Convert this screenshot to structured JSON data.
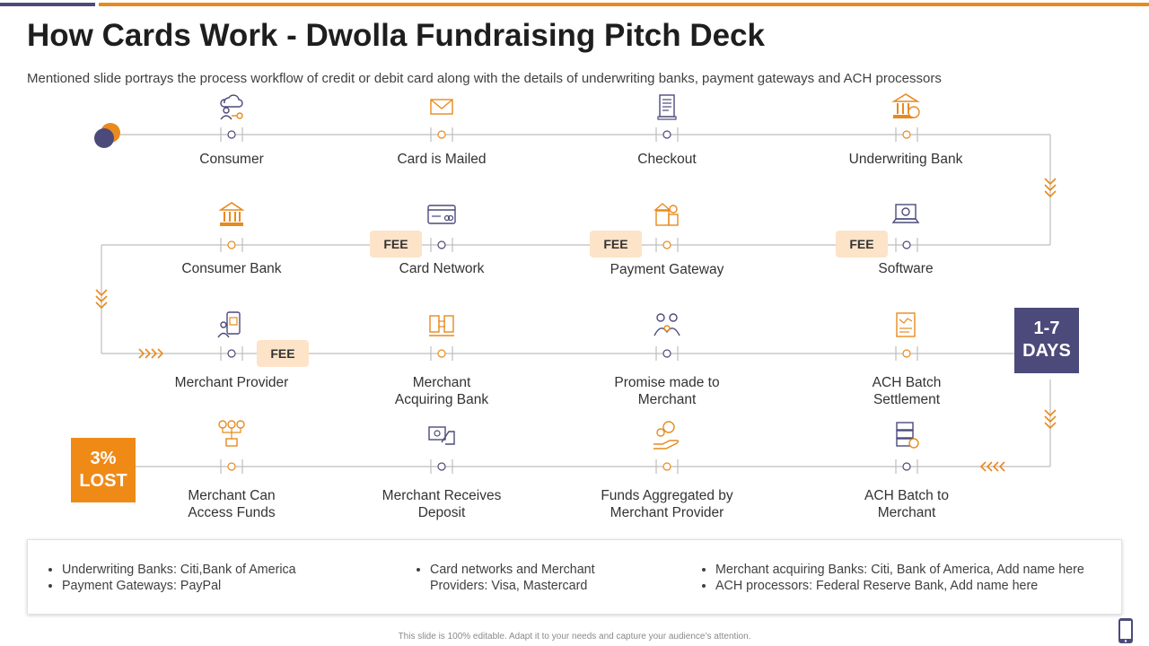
{
  "header": {
    "title": "How Cards Work - Dwolla Fundraising Pitch Deck",
    "subtitle": "Mentioned slide portrays the process workflow of credit or debit card along with the details of underwriting banks, payment gateways and ACH processors"
  },
  "steps": [
    {
      "label": "Consumer",
      "icon": "consumer-cloud-icon"
    },
    {
      "label": "Card is Mailed",
      "icon": "envelope-icon"
    },
    {
      "label": "Checkout",
      "icon": "receipt-icon"
    },
    {
      "label": "Underwriting Bank",
      "icon": "bank-icon"
    },
    {
      "label": "Consumer Bank",
      "icon": "bank-icon"
    },
    {
      "label": "Card Network",
      "icon": "credit-card-icon"
    },
    {
      "label": "Payment Gateway",
      "icon": "payment-gateway-icon"
    },
    {
      "label": "Software",
      "icon": "laptop-gear-icon"
    },
    {
      "label": "Merchant Provider",
      "icon": "mobile-payment-icon"
    },
    {
      "label": "Merchant Acquiring Bank",
      "icon": "money-transfer-icon"
    },
    {
      "label": "Promise made to Merchant",
      "icon": "handshake-people-icon"
    },
    {
      "label": "ACH Batch Settlement",
      "icon": "settlement-document-icon"
    },
    {
      "label": "Merchant Can Access Funds",
      "icon": "funds-tree-icon"
    },
    {
      "label": "Merchant Receives Deposit",
      "icon": "hand-cash-icon"
    },
    {
      "label": "Funds Aggregated by Merchant Provider",
      "icon": "coins-hand-icon"
    },
    {
      "label": "ACH Batch to Merchant",
      "icon": "batch-server-icon"
    }
  ],
  "fees": {
    "fee1": "FEE",
    "fee2": "FEE",
    "fee3": "FEE",
    "fee4": "FEE"
  },
  "days_badge": {
    "line1": "1-7",
    "line2": "DAYS"
  },
  "lost_badge": {
    "line1": "3%",
    "line2": "LOST"
  },
  "info": {
    "col1": [
      "Underwriting Banks: Citi,Bank of America",
      "Payment Gateways: PayPal"
    ],
    "col2": [
      "Card networks and Merchant Providers: Visa, Mastercard"
    ],
    "col3": [
      "Merchant acquiring Banks: Citi, Bank of America, Add name here",
      "ACH processors: Federal Reserve Bank, Add name here"
    ]
  },
  "footer": "This slide is 100% editable. Adapt it to your needs and capture your audience’s attention.",
  "colors": {
    "purple": "#4c4a7a",
    "orange": "#e88a1d",
    "fee_bg": "#fde3c8",
    "line": "#bdbdbd"
  }
}
